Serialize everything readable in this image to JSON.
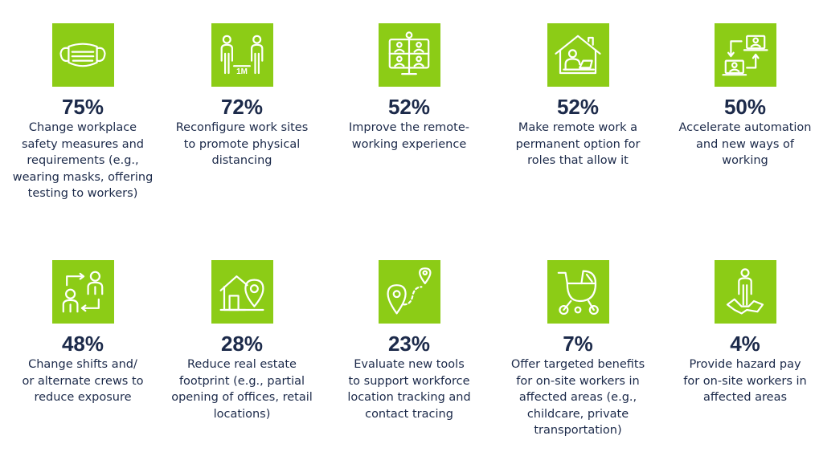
{
  "chart_data": {
    "type": "table",
    "items": [
      {
        "value": "75%",
        "text": "Change workplace\nsafety measures and\nrequirements (e.g.,\nwearing masks, offering\ntesting to workers)",
        "icon": "face-mask-icon"
      },
      {
        "value": "72%",
        "text": "Reconfigure work sites\nto promote physical\ndistancing",
        "icon": "physical-distancing-icon",
        "icon_label": "1M"
      },
      {
        "value": "52%",
        "text": "Improve the remote-\nworking experience",
        "icon": "video-conference-icon"
      },
      {
        "value": "52%",
        "text": "Make remote work a\npermanent option for\nroles that allow it",
        "icon": "work-from-home-icon"
      },
      {
        "value": "50%",
        "text": "Accelerate automation\nand new ways of\nworking",
        "icon": "automation-icon"
      },
      {
        "value": "48%",
        "text": "Change shifts and/\nor alternate crews to\nreduce exposure",
        "icon": "shift-swap-icon"
      },
      {
        "value": "28%",
        "text": "Reduce real estate\nfootprint (e.g., partial\nopening of offices, retail\nlocations)",
        "icon": "real-estate-icon"
      },
      {
        "value": "23%",
        "text": "Evaluate new tools\nto support workforce\nlocation tracking and\ncontact tracing",
        "icon": "location-tracking-icon"
      },
      {
        "value": "7%",
        "text": "Offer targeted benefits\nfor on-site workers in\naffected areas (e.g.,\nchildcare, private\ntransportation)",
        "icon": "stroller-icon"
      },
      {
        "value": "4%",
        "text": "Provide hazard pay\nfor on-site workers in\naffected areas",
        "icon": "hazard-worker-icon"
      }
    ]
  },
  "colors": {
    "tile": "#8ccc16",
    "text": "#1c2a4a"
  }
}
